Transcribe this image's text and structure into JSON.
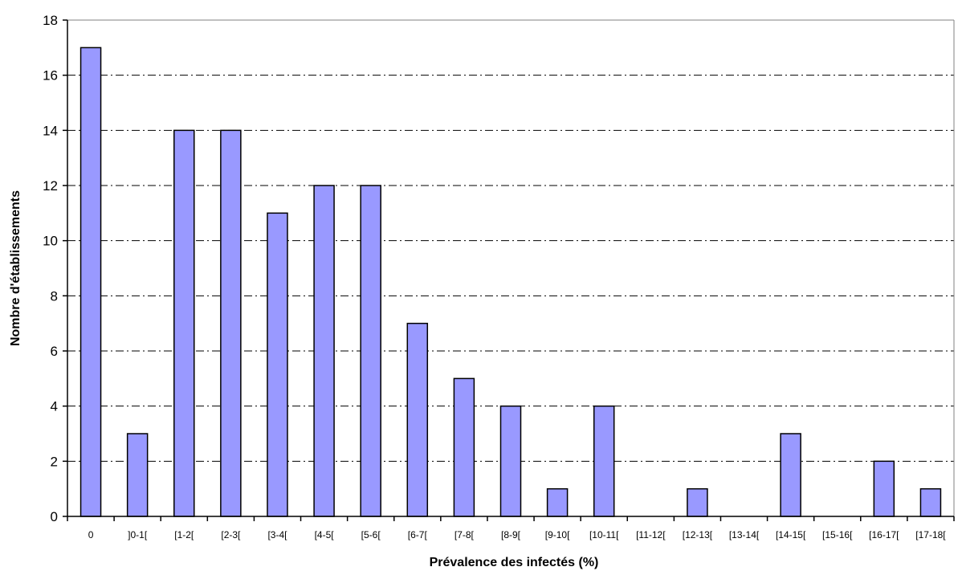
{
  "chart_data": {
    "type": "bar",
    "title": "",
    "xlabel": "Prévalence des infectés (%)",
    "ylabel": "Nombre d'établissements",
    "categories": [
      "0",
      "]0-1[",
      "[1-2[",
      "[2-3[",
      "[3-4[",
      "[4-5[",
      "[5-6[",
      "[6-7[",
      "[7-8[",
      "[8-9[",
      "[9-10[",
      "[10-11[",
      "[11-12[",
      "[12-13[",
      "[13-14[",
      "[14-15[",
      "[15-16[",
      "[16-17[",
      "[17-18["
    ],
    "values": [
      17,
      3,
      14,
      14,
      11,
      12,
      12,
      7,
      5,
      4,
      1,
      4,
      0,
      1,
      0,
      3,
      0,
      2,
      1
    ],
    "ylim": [
      0,
      18
    ],
    "yticks": [
      0,
      2,
      4,
      6,
      8,
      10,
      12,
      14,
      16,
      18
    ],
    "grid": "horizontal dash-dot",
    "legend": "none",
    "colors": {
      "bar_fill": "#9999ff",
      "bar_stroke": "#000000",
      "grid": "#000000",
      "background": "#ffffff"
    }
  }
}
